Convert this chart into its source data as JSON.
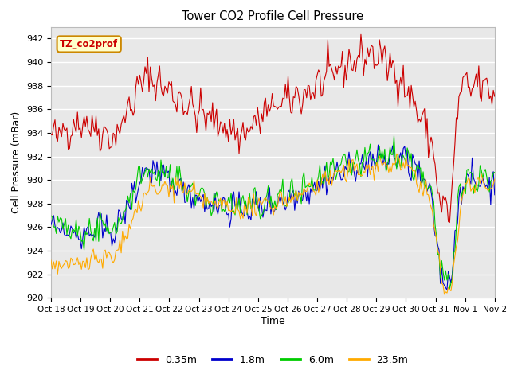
{
  "title": "Tower CO2 Profile Cell Pressure",
  "xlabel": "Time",
  "ylabel": "Cell Pressure (mBar)",
  "ylim": [
    920,
    943
  ],
  "yticks": [
    920,
    922,
    924,
    926,
    928,
    930,
    932,
    934,
    936,
    938,
    940,
    942
  ],
  "xtick_labels": [
    "Oct 18",
    "Oct 19",
    "Oct 20",
    "Oct 21",
    "Oct 22",
    "Oct 23",
    "Oct 24",
    "Oct 25",
    "Oct 26",
    "Oct 27",
    "Oct 28",
    "Oct 29",
    "Oct 30",
    "Oct 31",
    "Nov 1",
    "Nov 2"
  ],
  "series_colors": [
    "#cc0000",
    "#0000cc",
    "#00cc00",
    "#ffaa00"
  ],
  "series_labels": [
    "0.35m",
    "1.8m",
    "6.0m",
    "23.5m"
  ],
  "annotation_text": "TZ_co2prof",
  "annotation_bg": "#ffffcc",
  "annotation_border": "#cc8800",
  "fig_bg": "#ffffff",
  "plot_bg": "#e8e8e8",
  "grid_color": "#ffffff",
  "n_points": 336
}
